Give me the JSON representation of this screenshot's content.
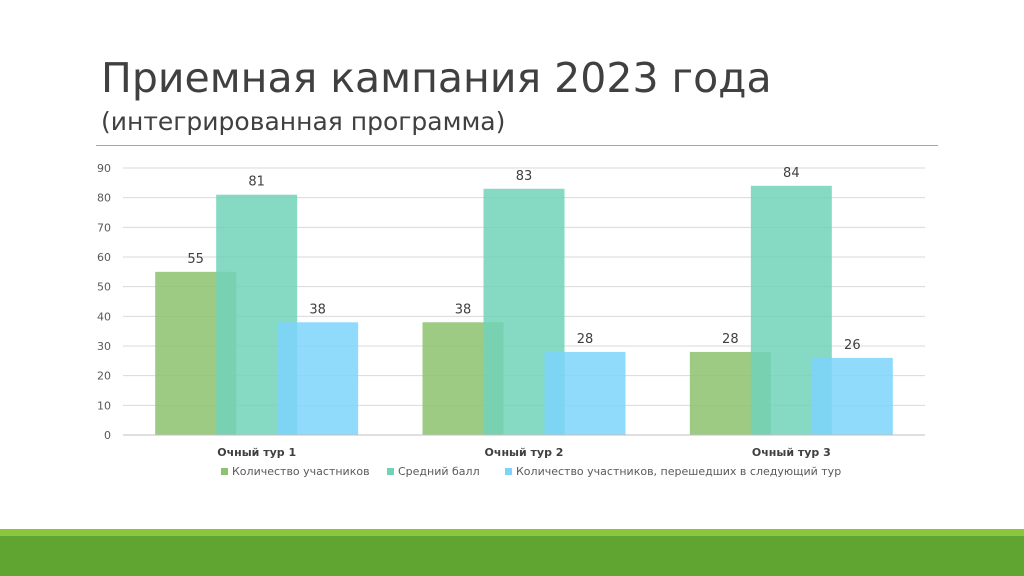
{
  "slide": {
    "title": "Приемная кампания 2023 года",
    "subtitle": "(интегрированная программа)"
  },
  "chart_data": {
    "type": "bar",
    "categories": [
      "Очный тур 1",
      "Очный тур 2",
      "Очный тур 3"
    ],
    "series": [
      {
        "name": "Количество участников",
        "values": [
          55,
          38,
          28
        ],
        "color": "#8dc26f"
      },
      {
        "name": "Средний балл",
        "values": [
          81,
          83,
          84
        ],
        "color": "#71d2b8"
      },
      {
        "name": "Количество участников, перешедших в следующий тур",
        "values": [
          38,
          28,
          26
        ],
        "color": "#7dd3fb"
      }
    ],
    "ylim": [
      0,
      90
    ],
    "yticks": [
      0,
      10,
      20,
      30,
      40,
      50,
      60,
      70,
      80,
      90
    ],
    "grid": true,
    "legend": "bottom",
    "data_labels": true,
    "xlabel": "",
    "ylabel": ""
  },
  "colors": {
    "text": "#404040",
    "axis_text": "#595959",
    "gridline": "#d9d9d9",
    "footer_light": "#8cc63e",
    "footer_dark": "#60a531"
  }
}
